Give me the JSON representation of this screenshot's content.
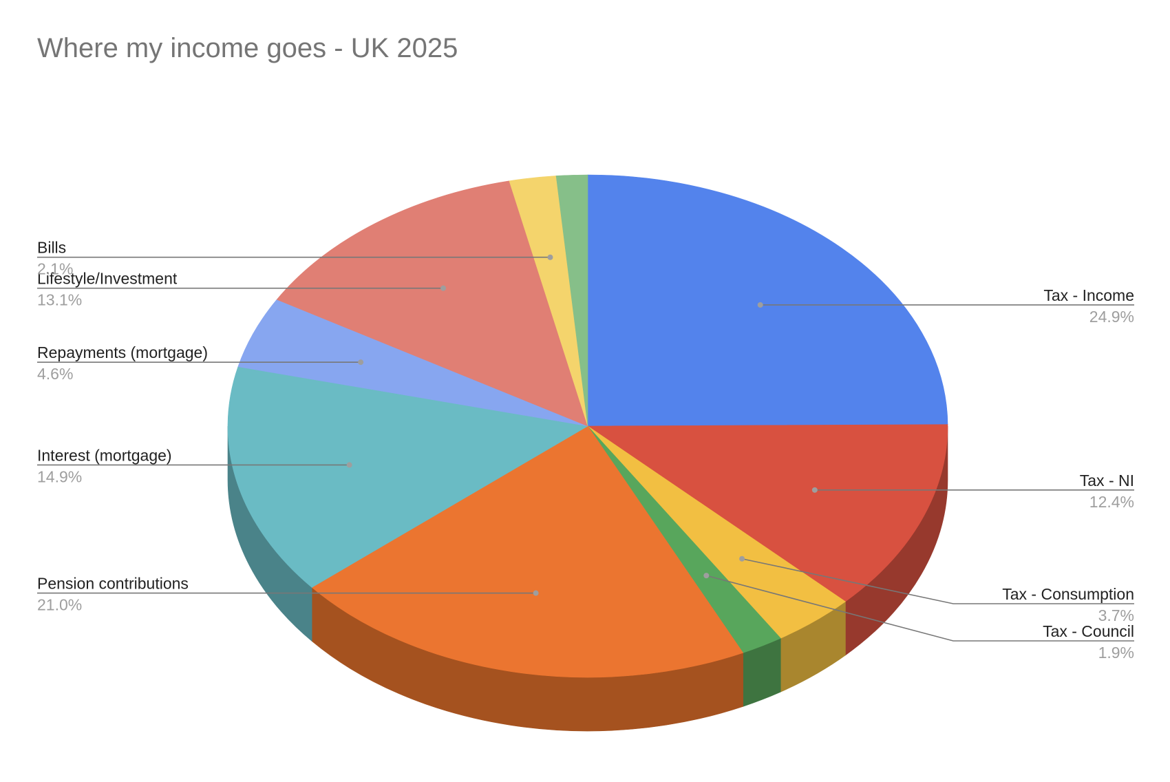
{
  "chart_data": {
    "type": "pie",
    "title": "Where my income goes - UK 2025",
    "style": "3d",
    "slices": [
      {
        "label": "Tax - Income",
        "value": 24.9,
        "pct_label": "24.9%",
        "color": "#5383EC",
        "side_color": "#3A5CA5"
      },
      {
        "label": "Tax - NI",
        "value": 12.4,
        "pct_label": "12.4%",
        "color": "#D85140",
        "side_color": "#97392D"
      },
      {
        "label": "Tax - Consumption",
        "value": 3.7,
        "pct_label": "3.7%",
        "color": "#F2BF42",
        "side_color": "#A9862E"
      },
      {
        "label": "Tax - Council",
        "value": 1.9,
        "pct_label": "1.9%",
        "color": "#58A65C",
        "side_color": "#3E7440"
      },
      {
        "label": "Pension contributions",
        "value": 21.0,
        "pct_label": "21.0%",
        "color": "#EB7530",
        "side_color": "#A5521F"
      },
      {
        "label": "Interest (mortgage)",
        "value": 14.9,
        "pct_label": "14.9%",
        "color": "#6ABBC4",
        "side_color": "#4A8389"
      },
      {
        "label": "Repayments (mortgage)",
        "value": 4.6,
        "pct_label": "4.6%",
        "color": "#87A6F0",
        "side_color": "#5F74A8"
      },
      {
        "label": "Lifestyle/Investment",
        "value": 13.1,
        "pct_label": "13.1%",
        "color": "#E07F74",
        "side_color": "#9D5951"
      },
      {
        "label": "Bills",
        "value": 2.1,
        "pct_label": "2.1%",
        "color": "#F4D46C",
        "side_color": "#AB944C"
      },
      {
        "label": "",
        "value": 1.4,
        "pct_label": "",
        "color": "#86BF89",
        "side_color": "#5E8660"
      }
    ],
    "legend": "none"
  }
}
